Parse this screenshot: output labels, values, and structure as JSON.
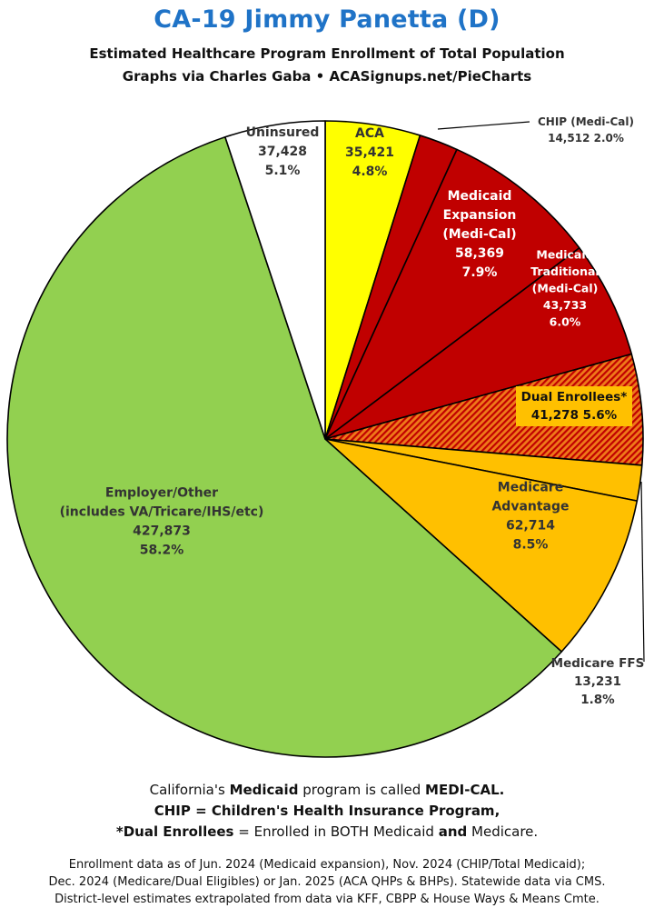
{
  "header": {
    "title": "CA-19 Jimmy Panetta (D)",
    "subtitle_1": "Estimated Healthcare Program Enrollment of Total Population",
    "subtitle_2": "Graphs via Charles Gaba  •  ACASignups.net/PieCharts"
  },
  "chart_data": {
    "type": "pie",
    "title": "CA-19 Jimmy Panetta (D)",
    "start": "12 o'clock, clockwise",
    "slices": [
      {
        "lines": [
          "ACA"
        ],
        "value": 35421,
        "value_text": "35,421",
        "pct": 4.8,
        "pct_text": "4.8%",
        "color": "#ffff00",
        "text_color": "#333333"
      },
      {
        "lines": [
          "CHIP (Medi-Cal)"
        ],
        "value": 14512,
        "value_text": "14,512",
        "pct": 2.0,
        "pct_text": "2.0%",
        "color": "#c00000",
        "text_color": "#333333"
      },
      {
        "lines": [
          "Medicaid",
          "Expansion",
          "(Medi-Cal)"
        ],
        "value": 58369,
        "value_text": "58,369",
        "pct": 7.9,
        "pct_text": "7.9%",
        "color": "#c00000",
        "text_color": "#ffffff"
      },
      {
        "lines": [
          "Medicaid",
          "Traditional",
          "(Medi-Cal)"
        ],
        "value": 43733,
        "value_text": "43,733",
        "pct": 6.0,
        "pct_text": "6.0%",
        "color": "#c00000",
        "text_color": "#ffffff"
      },
      {
        "lines": [
          "Dual Enrollees*"
        ],
        "value": 41278,
        "value_text": "41,278",
        "pct": 5.6,
        "pct_text": "5.6%",
        "color": "#e8580c",
        "pattern": "hatched",
        "text_color": "#111111"
      },
      {
        "lines": [
          "Medicare FFS"
        ],
        "value": 13231,
        "value_text": "13,231",
        "pct": 1.8,
        "pct_text": "1.8%",
        "color": "#ffc000",
        "text_color": "#333333"
      },
      {
        "lines": [
          "Medicare",
          "Advantage"
        ],
        "value": 62714,
        "value_text": "62,714",
        "pct": 8.5,
        "pct_text": "8.5%",
        "color": "#ffc000",
        "text_color": "#333333"
      },
      {
        "lines": [
          "Employer/Other",
          "(includes VA/Tricare/IHS/etc)"
        ],
        "value": 427873,
        "value_text": "427,873",
        "pct": 58.2,
        "pct_text": "58.2%",
        "color": "#92d050",
        "text_color": "#333333"
      },
      {
        "lines": [
          "Uninsured"
        ],
        "value": 37428,
        "value_text": "37,428",
        "pct": 5.1,
        "pct_text": "5.1%",
        "color": "#ffffff",
        "text_color": "#333333"
      }
    ]
  },
  "footer": {
    "lines": [
      [
        {
          "t": "California's "
        },
        {
          "t": "Medicaid",
          "b": true
        },
        {
          "t": " program is called "
        },
        {
          "t": "MEDI-CAL.",
          "b": true
        }
      ],
      [
        {
          "t": "CHIP = Children's Health Insurance Program,",
          "b": true
        }
      ],
      [
        {
          "t": "*Dual Enrollees",
          "b": true
        },
        {
          "t": " = Enrolled in BOTH Medicaid "
        },
        {
          "t": "and",
          "b": true
        },
        {
          "t": " Medicare."
        }
      ]
    ],
    "small_lines": [
      "Enrollment data as of Jun. 2024 (Medicaid expansion), Nov. 2024 (CHIP/Total Medicaid);",
      "Dec. 2024 (Medicare/Dual Eligibles) or Jan. 2025 (ACA QHPs & BHPs). Statewide data via CMS.",
      "District-level estimates extrapolated from data via KFF, CBPP & House Ways & Means Cmte."
    ]
  }
}
